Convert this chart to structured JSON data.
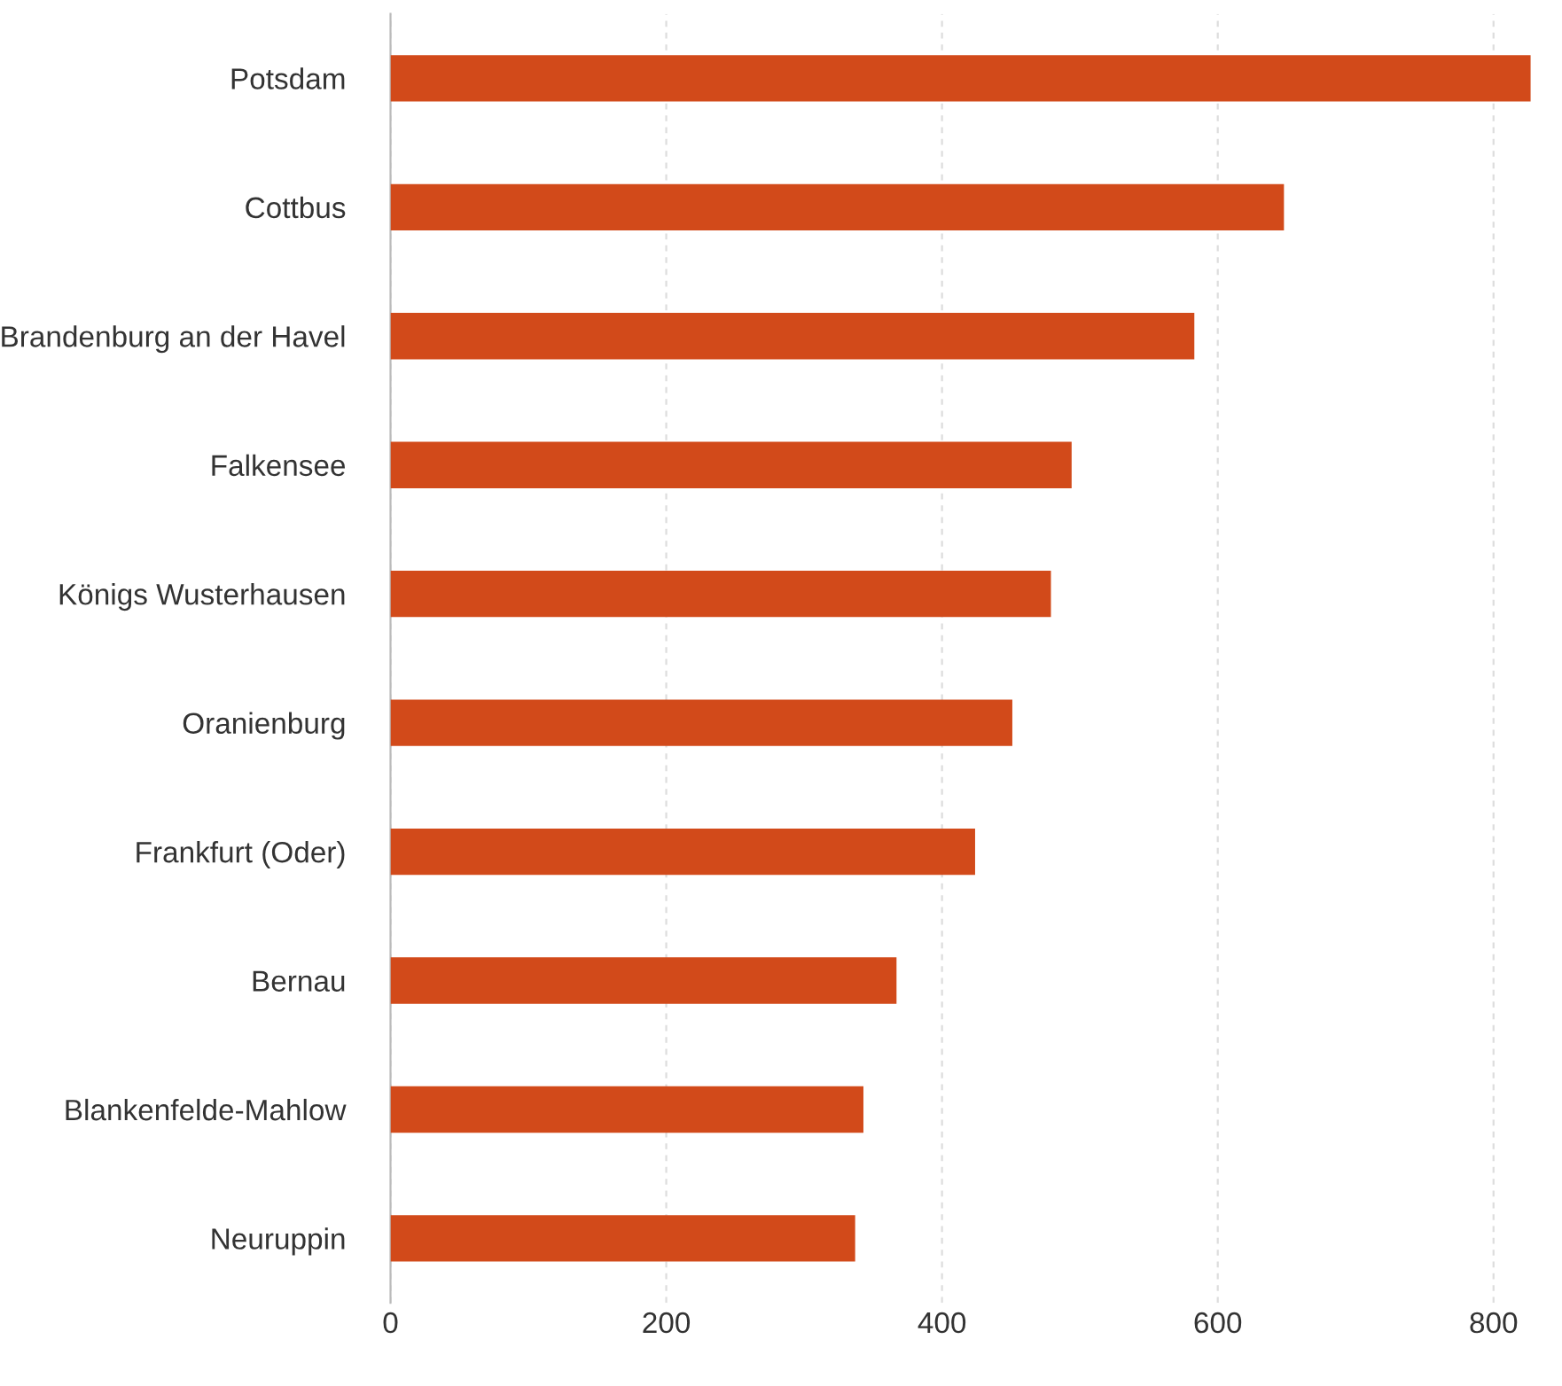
{
  "chart_data": {
    "type": "bar",
    "orientation": "horizontal",
    "categories": [
      "Potsdam",
      "Cottbus",
      "Brandenburg an der Havel",
      "Falkensee",
      "Königs Wusterhausen",
      "Oranienburg",
      "Frankfurt (Oder)",
      "Bernau",
      "Blankenfelde-Mahlow",
      "Neuruppin"
    ],
    "values": [
      827,
      648,
      583,
      494,
      479,
      451,
      424,
      367,
      343,
      337
    ],
    "color": "#d24a1a",
    "xlim": [
      0,
      827
    ],
    "xticks": [
      0,
      200,
      400,
      600,
      800
    ],
    "grid": "x",
    "legend": false
  }
}
